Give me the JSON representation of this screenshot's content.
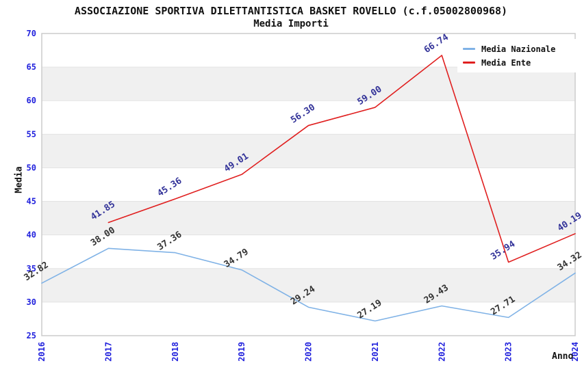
{
  "chart_data": {
    "type": "line",
    "title": "ASSOCIAZIONE SPORTIVA DILETTANTISTICA BASKET ROVELLO (c.f.05002800968)",
    "subtitle": "Media Importi",
    "xlabel": "Anno",
    "ylabel": "Media",
    "x": [
      "2016",
      "2017",
      "2018",
      "2019",
      "2020",
      "2021",
      "2022",
      "2023",
      "2024"
    ],
    "ylim": [
      25,
      70
    ],
    "ytick_step": 5,
    "grid": "horizontal-bands-alternating",
    "legend_position": "top-right",
    "series": [
      {
        "name": "Media Nazionale",
        "color": "#7fb2e6",
        "label_color": "#333333",
        "values": [
          32.82,
          38.0,
          37.36,
          34.79,
          29.24,
          27.19,
          29.43,
          27.71,
          34.32
        ]
      },
      {
        "name": "Media Ente",
        "color": "#e01f1f",
        "label_color": "#333399",
        "values": [
          null,
          41.85,
          45.36,
          49.01,
          56.3,
          59.0,
          66.74,
          35.94,
          40.19
        ]
      }
    ],
    "colors": {
      "tick_label": "#2222dd",
      "band": "#f0f0f0",
      "gridline": "#e3e3e3",
      "plot_border": "#cccccc",
      "title_text": "#111111",
      "background": "#ffffff"
    }
  }
}
